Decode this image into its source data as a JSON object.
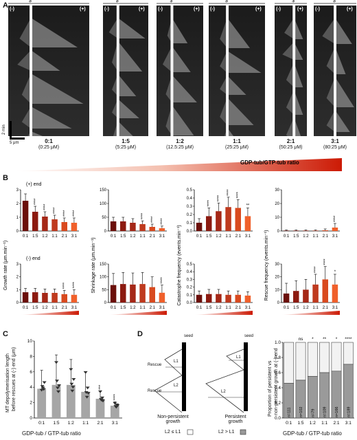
{
  "panels": {
    "A": "A",
    "B": "B",
    "C": "C",
    "D": "D"
  },
  "panelA": {
    "seed_symbol": "$",
    "minus_end": "(-)",
    "plus_end": "(+)",
    "time_scale": "2 min",
    "length_scale": "5 μm",
    "kymographs": [
      {
        "ratio": "0:1",
        "conc": "(0:25 μM)"
      },
      {
        "ratio": "1:5",
        "conc": "(5:25 μM)"
      },
      {
        "ratio": "1:2",
        "conc": "(12.5:25 μM)"
      },
      {
        "ratio": "1:1",
        "conc": "(25:25 μM)"
      },
      {
        "ratio": "2:1",
        "conc": "(50:25 μM)"
      },
      {
        "ratio": "3:1",
        "conc": "(80:25 μM)"
      }
    ],
    "gradient_label": "GDP-tub/GTP-tub ratio"
  },
  "panelB": {
    "plus_end": "(+) end",
    "minus_end": "(-) end",
    "categories": [
      "0:1",
      "1:5",
      "1:2",
      "1:1",
      "2:1",
      "3:1"
    ]
  },
  "panelC": {
    "ylabel_line1": "MT depolymerisation length",
    "ylabel_line2": "before rescues at (-) end (μm)",
    "xlabel": "GDP-tub / GTP-tub ratio"
  },
  "panelD": {
    "seed": "seed",
    "rescue": "Rescue",
    "L1": "L1",
    "L2": "L2",
    "non_persistent_line1": "Non-persistent",
    "non_persistent_line2": "growth",
    "persistent_line1": "Persistent",
    "persistent_line2": "growth",
    "key_light": "L2 ≤ L1",
    "key_dark": "L2 > L1",
    "ylabel_line1": "Proportion of persistent vs",
    "ylabel_line2": "non-persistent growth at (-) end",
    "xlabel": "GDP-tub / GTP-tub ratio"
  },
  "chart_data": [
    {
      "type": "bar",
      "panel": "B",
      "end": "(+) end",
      "ylabel": "Growth rate (μm.min⁻¹)",
      "categories": [
        "0:1",
        "1:5",
        "1:2",
        "1:1",
        "2:1",
        "3:1"
      ],
      "values": [
        2.2,
        1.4,
        1.05,
        0.85,
        0.65,
        0.6
      ],
      "errors": [
        0.5,
        0.4,
        0.35,
        0.3,
        0.3,
        0.35
      ],
      "sig": [
        "",
        "****",
        "****",
        "****",
        "****",
        "****"
      ],
      "ylim": [
        0,
        3
      ],
      "yticks": [
        "0",
        "1",
        "2",
        "3"
      ]
    },
    {
      "type": "bar",
      "panel": "B",
      "end": "(+) end",
      "ylabel": "Shrinkage rate (μm.min⁻¹)",
      "categories": [
        "0:1",
        "1:5",
        "1:2",
        "1:1",
        "2:1",
        "3:1"
      ],
      "values": [
        35,
        35,
        30,
        25,
        15,
        10
      ],
      "errors": [
        15,
        15,
        15,
        12,
        10,
        8
      ],
      "sig": [
        "",
        "",
        "",
        "****",
        "****",
        "****"
      ],
      "ylim": [
        0,
        150
      ],
      "yticks": [
        "0",
        "50",
        "100",
        "150"
      ]
    },
    {
      "type": "bar",
      "panel": "B",
      "end": "(+) end",
      "ylabel": "Catastrophe frequency (events.min⁻¹)",
      "categories": [
        "0:1",
        "1:5",
        "1:2",
        "1:1",
        "2:1",
        "3:1"
      ],
      "values": [
        0.1,
        0.18,
        0.24,
        0.29,
        0.28,
        0.18
      ],
      "errors": [
        0.05,
        0.1,
        0.1,
        0.12,
        0.1,
        0.1
      ],
      "sig": [
        "",
        "****",
        "****",
        "****",
        "****",
        "**"
      ],
      "ylim": [
        0,
        0.5
      ],
      "yticks": [
        "0.0",
        "0.1",
        "0.2",
        "0.3",
        "0.4",
        "0.5"
      ]
    },
    {
      "type": "bar",
      "panel": "B",
      "end": "(+) end",
      "ylabel": "Rescue frequency (events.min⁻¹)",
      "categories": [
        "0:1",
        "1:5",
        "1:2",
        "1:1",
        "2:1",
        "3:1"
      ],
      "values": [
        0.3,
        0.3,
        0.3,
        0.3,
        0.5,
        2.5
      ],
      "errors": [
        0.5,
        0.5,
        0.5,
        0.5,
        1,
        3
      ],
      "sig": [
        "",
        "",
        "",
        "",
        "",
        "****"
      ],
      "ylim": [
        0,
        30
      ],
      "yticks": [
        "0",
        "10",
        "20",
        "30"
      ]
    },
    {
      "type": "bar",
      "panel": "B",
      "end": "(-) end",
      "ylabel": "Growth rate (μm.min⁻¹)",
      "categories": [
        "0:1",
        "1:5",
        "1:2",
        "1:1",
        "2:1",
        "3:1"
      ],
      "values": [
        0.8,
        0.8,
        0.75,
        0.75,
        0.65,
        0.6
      ],
      "errors": [
        0.3,
        0.3,
        0.3,
        0.3,
        0.3,
        0.4
      ],
      "sig": [
        "",
        "",
        "",
        "",
        "****",
        "****"
      ],
      "ylim": [
        0,
        3
      ],
      "yticks": [
        "0",
        "1",
        "2",
        "3"
      ]
    },
    {
      "type": "bar",
      "panel": "B",
      "end": "(-) end",
      "ylabel": "Shrinkage rate (μm.min⁻¹)",
      "categories": [
        "0:1",
        "1:5",
        "1:2",
        "1:1",
        "2:1",
        "3:1"
      ],
      "values": [
        68,
        72,
        70,
        72,
        60,
        38
      ],
      "errors": [
        45,
        45,
        45,
        45,
        40,
        30
      ],
      "sig": [
        "",
        "",
        "",
        "",
        "",
        "****"
      ],
      "ylim": [
        0,
        150
      ],
      "yticks": [
        "0",
        "50",
        "100",
        "150"
      ]
    },
    {
      "type": "bar",
      "panel": "B",
      "end": "(-) end",
      "ylabel": "Catastrophe frequency (events.min⁻¹)",
      "categories": [
        "0:1",
        "1:5",
        "1:2",
        "1:1",
        "2:1",
        "3:1"
      ],
      "values": [
        0.1,
        0.11,
        0.11,
        0.1,
        0.1,
        0.09
      ],
      "errors": [
        0.05,
        0.06,
        0.06,
        0.05,
        0.05,
        0.05
      ],
      "sig": [
        "",
        "",
        "",
        "",
        "",
        ""
      ],
      "ylim": [
        0,
        0.5
      ],
      "yticks": [
        "0.0",
        "0.1",
        "0.2",
        "0.3",
        "0.4",
        "0.5"
      ]
    },
    {
      "type": "bar",
      "panel": "B",
      "end": "(-) end",
      "ylabel": "Rescue frequency (events.min⁻¹)",
      "categories": [
        "0:1",
        "1:5",
        "1:2",
        "1:1",
        "2:1",
        "3:1"
      ],
      "values": [
        7,
        9,
        10,
        14,
        18,
        14
      ],
      "errors": [
        8,
        8,
        8,
        8,
        10,
        8
      ],
      "sig": [
        "",
        "",
        "",
        "****",
        "****",
        "*"
      ],
      "ylim": [
        0,
        30
      ],
      "yticks": [
        "0",
        "10",
        "20",
        "30"
      ]
    },
    {
      "type": "bar",
      "panel": "C",
      "ylabel": "MT depolymerisation length before rescues at (-) end (μm)",
      "xlabel": "GDP-tub / GTP-tub ratio",
      "categories": [
        "0:1",
        "1:5",
        "1:2",
        "1:1",
        "2:1",
        "3:1"
      ],
      "values": [
        3.8,
        4.3,
        4.3,
        3.4,
        2.5,
        1.6
      ],
      "errors": [
        2.4,
        3.9,
        3.3,
        2.6,
        1.0,
        0.5
      ],
      "sig": [
        "",
        "",
        "",
        "",
        "***",
        "****"
      ],
      "ylim": [
        0,
        10
      ],
      "yticks": [
        "0",
        "2",
        "4",
        "6",
        "8",
        "10"
      ]
    },
    {
      "type": "bar",
      "panel": "D",
      "stacked": true,
      "ylabel": "Proportion of persistent vs non-persistent growth at (-) end",
      "xlabel": "GDP-tub / GTP-tub ratio",
      "categories": [
        "0:1",
        "1:5",
        "1:2",
        "1:1",
        "2:1",
        "3:1"
      ],
      "values_persistent": [
        0.46,
        0.5,
        0.55,
        0.6,
        0.62,
        0.71
      ],
      "n": [
        "n=111",
        "n=102",
        "n=79",
        "n=109",
        "n=166",
        "n=189"
      ],
      "sig": [
        "",
        "ns",
        "*",
        "**",
        "*",
        "****"
      ],
      "ylim": [
        0,
        1
      ],
      "yticks": [
        "0.0",
        "0.2",
        "0.4",
        "0.6",
        "0.8",
        "1.0"
      ]
    }
  ]
}
